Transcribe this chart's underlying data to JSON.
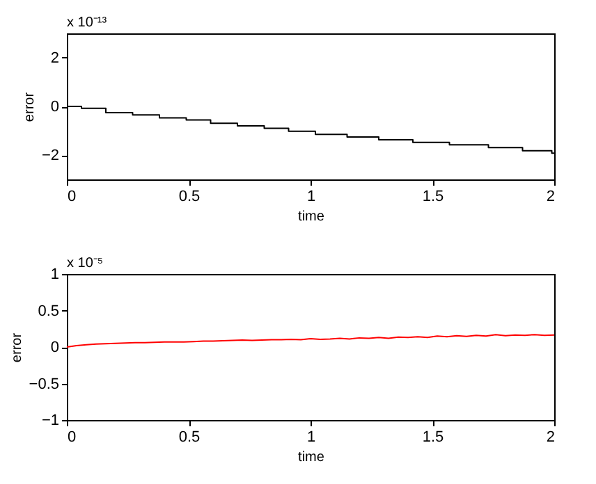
{
  "chart_data": [
    {
      "type": "step",
      "xlabel": "time",
      "ylabel": "error",
      "annotations": [
        "x 10⁻¹³"
      ],
      "xlim": [
        0,
        2
      ],
      "xticks": [
        0,
        0.5,
        1,
        1.5,
        2
      ],
      "ylim": [
        -3,
        3
      ],
      "yticks": [
        -2,
        0,
        2
      ],
      "grid": false,
      "series": [
        {
          "color": "#000000",
          "x": [
            0,
            0.06,
            0.16,
            0.27,
            0.38,
            0.49,
            0.59,
            0.7,
            0.81,
            0.91,
            1.02,
            1.15,
            1.28,
            1.42,
            1.57,
            1.73,
            1.87,
            1.99,
            2
          ],
          "values": [
            0,
            -0.08,
            -0.26,
            -0.35,
            -0.47,
            -0.56,
            -0.69,
            -0.8,
            -0.9,
            -1.02,
            -1.15,
            -1.26,
            -1.37,
            -1.48,
            -1.58,
            -1.69,
            -1.82,
            -1.92,
            -1.92
          ]
        }
      ]
    },
    {
      "type": "line",
      "xlabel": "time",
      "ylabel": "error",
      "annotations": [
        "x 10⁻⁵"
      ],
      "xlim": [
        0,
        2
      ],
      "xticks": [
        0,
        0.5,
        1,
        1.5,
        2
      ],
      "ylim": [
        -1,
        1
      ],
      "yticks": [
        -1,
        -0.5,
        0,
        0.5,
        1
      ],
      "grid": false,
      "series": [
        {
          "color": "#ff0000",
          "x": [
            0,
            0.04,
            0.08,
            0.12,
            0.16,
            0.2,
            0.24,
            0.28,
            0.32,
            0.36,
            0.4,
            0.44,
            0.48,
            0.52,
            0.56,
            0.6,
            0.64,
            0.68,
            0.72,
            0.76,
            0.8,
            0.84,
            0.88,
            0.92,
            0.96,
            1.0,
            1.04,
            1.08,
            1.12,
            1.16,
            1.2,
            1.24,
            1.28,
            1.32,
            1.36,
            1.4,
            1.44,
            1.48,
            1.52,
            1.56,
            1.6,
            1.64,
            1.68,
            1.72,
            1.76,
            1.8,
            1.84,
            1.88,
            1.92,
            1.96,
            2.0
          ],
          "values": [
            0,
            0.02,
            0.03,
            0.04,
            0.045,
            0.05,
            0.055,
            0.06,
            0.06,
            0.065,
            0.07,
            0.07,
            0.07,
            0.075,
            0.08,
            0.08,
            0.085,
            0.09,
            0.095,
            0.09,
            0.095,
            0.1,
            0.1,
            0.105,
            0.1,
            0.115,
            0.105,
            0.11,
            0.12,
            0.11,
            0.125,
            0.12,
            0.13,
            0.12,
            0.135,
            0.13,
            0.14,
            0.13,
            0.15,
            0.14,
            0.155,
            0.145,
            0.16,
            0.15,
            0.17,
            0.155,
            0.165,
            0.16,
            0.17,
            0.16,
            0.165
          ]
        }
      ]
    }
  ]
}
